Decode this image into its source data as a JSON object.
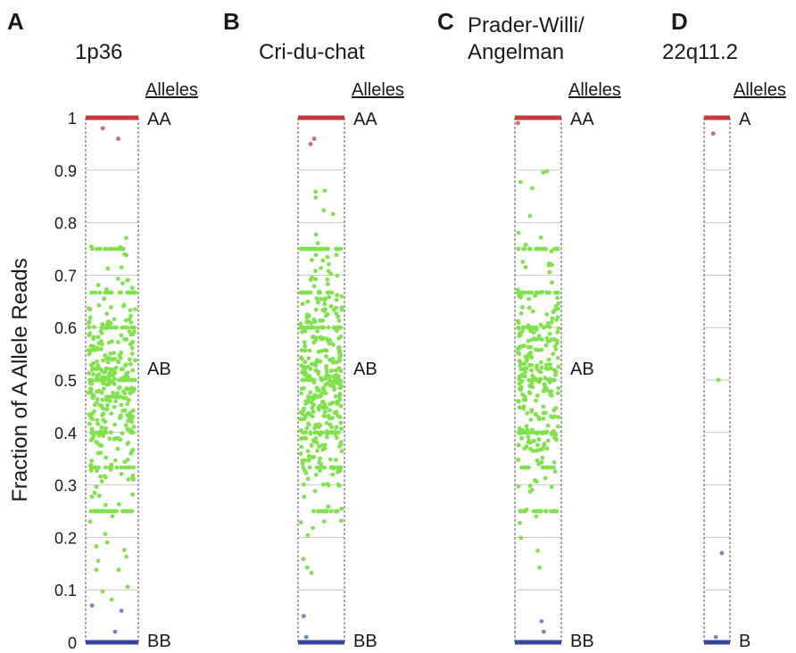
{
  "ylabel": "Fraction of A Allele Reads",
  "yticks": [
    "0",
    "0.1",
    "0.2",
    "0.3",
    "0.4",
    "0.5",
    "0.6",
    "0.7",
    "0.8",
    "0.9",
    "1"
  ],
  "alleles_header": "Alleles",
  "colors": {
    "aa": "#c8393b",
    "ab": "#7ee34a",
    "bb": "#34479c",
    "aa_point": "#d26a6c",
    "bb_point": "#6f8bc7",
    "grid": "#c9c9c9"
  },
  "panels": [
    {
      "letter": "A",
      "title_lines": [
        "1p36"
      ],
      "top_label": "AA",
      "mid_label": "AB",
      "bottom_label": "BB"
    },
    {
      "letter": "B",
      "title_lines": [
        "Cri-du-chat"
      ],
      "top_label": "AA",
      "mid_label": "AB",
      "bottom_label": "BB"
    },
    {
      "letter": "C",
      "title_lines": [
        "Prader-Willi/",
        "Angelman"
      ],
      "top_label": "AA",
      "mid_label": "AB",
      "bottom_label": "BB"
    },
    {
      "letter": "D",
      "title_lines": [
        "22q11.2"
      ],
      "top_label": "A",
      "mid_label": "",
      "bottom_label": "B"
    }
  ],
  "chart_data": [
    {
      "type": "scatter",
      "title": "1p36",
      "ylabel": "Fraction of A Allele Reads",
      "ylim": [
        0,
        1
      ],
      "series": [
        {
          "name": "AA",
          "values": [
            1.0,
            0.98,
            0.96
          ],
          "dense_line": 1.0
        },
        {
          "name": "AB",
          "count": 420,
          "range": [
            0.08,
            0.8
          ],
          "center": 0.5,
          "spread": 0.09
        },
        {
          "name": "BB",
          "values": [
            0.0,
            0.07,
            0.06,
            0.02
          ],
          "dense_line": 0.0
        }
      ]
    },
    {
      "type": "scatter",
      "title": "Cri-du-chat",
      "ylabel": "Fraction of A Allele Reads",
      "ylim": [
        0,
        1
      ],
      "series": [
        {
          "name": "AA",
          "values": [
            1.0,
            0.96,
            0.95
          ],
          "dense_line": 1.0
        },
        {
          "name": "AB",
          "count": 460,
          "range": [
            0.13,
            0.88
          ],
          "center": 0.5,
          "spread": 0.1
        },
        {
          "name": "BB",
          "values": [
            0.0,
            0.05,
            0.01
          ],
          "dense_line": 0.0
        }
      ]
    },
    {
      "type": "scatter",
      "title": "Prader-Willi/ Angelman",
      "ylabel": "Fraction of A Allele Reads",
      "ylim": [
        0,
        1
      ],
      "series": [
        {
          "name": "AA",
          "values": [
            1.0,
            0.99
          ],
          "dense_line": 1.0
        },
        {
          "name": "AB",
          "count": 360,
          "range": [
            0.12,
            0.92
          ],
          "center": 0.5,
          "spread": 0.1
        },
        {
          "name": "BB",
          "values": [
            0.0,
            0.04,
            0.02
          ],
          "dense_line": 0.0
        }
      ]
    },
    {
      "type": "scatter",
      "title": "22q11.2",
      "ylabel": "Fraction of A Allele Reads",
      "ylim": [
        0,
        1
      ],
      "series": [
        {
          "name": "A",
          "values": [
            1.0,
            0.97
          ],
          "dense_line": 1.0
        },
        {
          "name": "AB",
          "values": [
            0.5
          ]
        },
        {
          "name": "B",
          "values": [
            0.17,
            0.01
          ],
          "dense_line": 0.0
        }
      ]
    }
  ]
}
